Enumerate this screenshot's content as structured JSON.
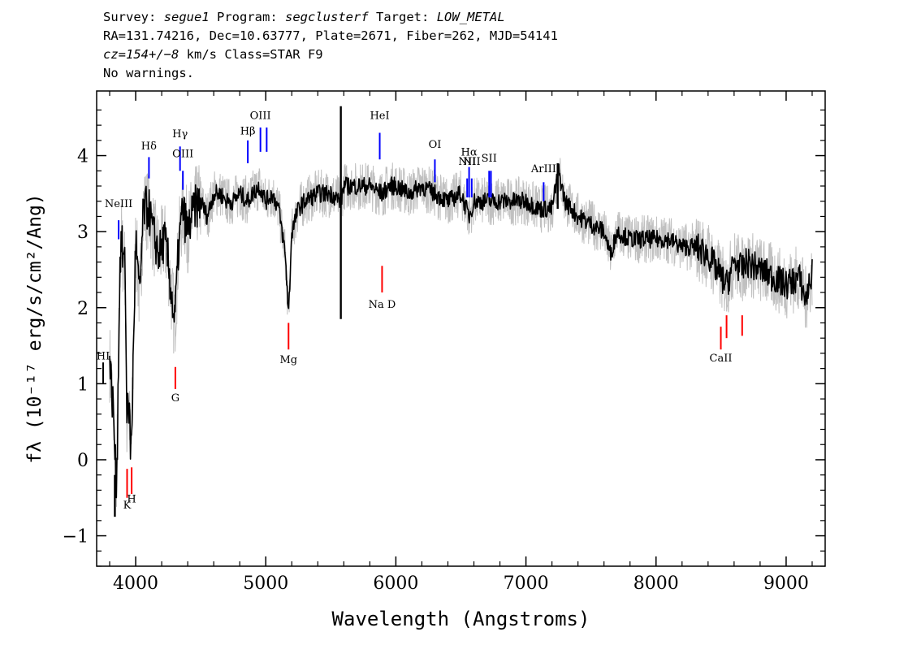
{
  "header": {
    "survey_label": "Survey:",
    "survey_value": "segue1",
    "program_label": "Program:",
    "program_value": "segclusterf",
    "target_label": "Target:",
    "target_value": "LOW_METAL",
    "line2": "RA=131.74216, Dec=10.63777, Plate=2671, Fiber=262, MJD=54141",
    "cz_label": "cz=",
    "cz_value": "154+/−8",
    "cz_unit": " km/s Class=STAR F9",
    "line4": "No warnings."
  },
  "colors": {
    "flux": "#000000",
    "error_band": "#c0c0c0",
    "emission_line": "#0000ff",
    "absorption_line": "#ff0000"
  },
  "chart_data": {
    "type": "line",
    "xlabel": "Wavelength (Angstroms)",
    "ylabel": "fλ (10⁻¹⁷ erg/s/cm²/Ang)",
    "xlim": [
      3700,
      9300
    ],
    "ylim": [
      -1.4,
      4.85
    ],
    "x_ticks": [
      4000,
      5000,
      6000,
      7000,
      8000,
      9000
    ],
    "y_ticks": [
      -1,
      0,
      1,
      2,
      3,
      4
    ],
    "grid": false,
    "series": [
      {
        "x": [
          3800,
          3830,
          3850,
          3860,
          3870,
          3880,
          3890,
          3900,
          3920,
          3933,
          3940,
          3960,
          3968,
          3980,
          4000,
          4030,
          4060,
          4101,
          4130,
          4180,
          4220,
          4250,
          4280,
          4300,
          4330,
          4361,
          4400,
          4450,
          4500,
          4550,
          4600,
          4650,
          4700,
          4750,
          4800,
          4861,
          4900,
          4950,
          5000,
          5050,
          5100,
          5150,
          5175,
          5200,
          5250,
          5300,
          5400,
          5500,
          5577,
          5600,
          5700,
          5800,
          5893,
          5950,
          6000,
          6100,
          6200,
          6300,
          6400,
          6500,
          6563,
          6600,
          6700,
          6800,
          6900,
          7000,
          7100,
          7200,
          7250,
          7300,
          7400,
          7500,
          7600,
          7650,
          7700,
          7800,
          7900,
          8000,
          8100,
          8200,
          8300,
          8400,
          8498,
          8542,
          8600,
          8662,
          8700,
          8800,
          8900,
          9000,
          9100,
          9150,
          9200
        ],
        "y": [
          1.3,
          0.6,
          -0.4,
          0.3,
          1.6,
          2.6,
          2.9,
          2.7,
          2.5,
          0.3,
          1.0,
          0.2,
          0.2,
          1.2,
          2.9,
          2.1,
          3.3,
          3.3,
          3.0,
          2.7,
          2.9,
          2.6,
          2.1,
          1.8,
          2.8,
          3.3,
          3.0,
          3.3,
          3.4,
          3.2,
          3.5,
          3.5,
          3.4,
          3.4,
          3.5,
          3.4,
          3.5,
          3.6,
          3.4,
          3.5,
          3.3,
          2.7,
          1.9,
          3.0,
          3.3,
          3.4,
          3.5,
          3.5,
          3.4,
          3.6,
          3.6,
          3.6,
          3.5,
          3.6,
          3.6,
          3.5,
          3.6,
          3.5,
          3.4,
          3.5,
          3.2,
          3.4,
          3.4,
          3.4,
          3.4,
          3.4,
          3.3,
          3.3,
          3.8,
          3.4,
          3.2,
          3.1,
          3.0,
          2.7,
          3.0,
          2.9,
          2.9,
          2.9,
          2.9,
          2.8,
          2.8,
          2.7,
          2.4,
          2.3,
          2.6,
          2.5,
          2.6,
          2.5,
          2.4,
          2.3,
          2.4,
          2.1,
          2.45
        ],
        "spikes": [
          {
            "x": 5577,
            "y_top": 4.65,
            "y_bottom": 1.85
          },
          {
            "x": 7244,
            "y_top": 3.9,
            "y_bottom": 3.3
          },
          {
            "x": 3840,
            "y_top": -0.2,
            "y_bottom": -0.75
          }
        ],
        "error_width": 0.28
      }
    ],
    "line_markers": [
      {
        "name": "NeIII",
        "x": 3869,
        "y_label": 3.32,
        "bar": [
          2.9,
          3.15
        ],
        "kind": "emission"
      },
      {
        "name": "Hδ",
        "x": 4102,
        "y_label": 4.08,
        "bar": [
          3.7,
          3.98
        ],
        "kind": "emission"
      },
      {
        "name": "Hγ",
        "x": 4341,
        "y_label": 4.24,
        "bar": [
          3.8,
          4.12
        ],
        "kind": "emission"
      },
      {
        "name": "OIII",
        "x": 4363,
        "y_label": 3.98,
        "bar": [
          3.55,
          3.8
        ],
        "kind": "emission"
      },
      {
        "name": "Hβ",
        "x": 4862,
        "y_label": 4.28,
        "bar": [
          3.9,
          4.2
        ],
        "kind": "emission"
      },
      {
        "name": "OIII",
        "x": 4959,
        "y_label": 4.48,
        "bar": [
          4.05,
          4.37
        ],
        "kind": "emission"
      },
      {
        "name": "",
        "x": 5007,
        "y_label": 4.48,
        "bar": [
          4.05,
          4.37
        ],
        "kind": "emission"
      },
      {
        "name": "HeI",
        "x": 5876,
        "y_label": 4.48,
        "bar": [
          3.95,
          4.3
        ],
        "kind": "emission"
      },
      {
        "name": "OI",
        "x": 6300,
        "y_label": 4.1,
        "bar": [
          3.65,
          3.95
        ],
        "kind": "emission"
      },
      {
        "name": "NII",
        "x": 6548,
        "y_label": 3.88,
        "bar": [
          3.45,
          3.7
        ],
        "kind": "emission"
      },
      {
        "name": "Hα",
        "x": 6563,
        "y_label": 4.0,
        "bar": [
          3.45,
          3.85
        ],
        "kind": "emission"
      },
      {
        "name": "NII",
        "x": 6583,
        "y_label": 3.88,
        "bar": [
          3.45,
          3.7
        ],
        "kind": "emission"
      },
      {
        "name": "SII",
        "x": 6717,
        "y_label": 3.92,
        "bar": [
          3.45,
          3.8
        ],
        "kind": "emission"
      },
      {
        "name": "",
        "x": 6731,
        "y_label": 3.92,
        "bar": [
          3.45,
          3.8
        ],
        "kind": "emission"
      },
      {
        "name": "ArIII",
        "x": 7136,
        "y_label": 3.78,
        "bar": [
          3.4,
          3.65
        ],
        "kind": "emission"
      },
      {
        "name": "HI",
        "x": 3750,
        "y_label": 1.32,
        "bar": [
          1.0,
          1.28
        ],
        "kind": "absorption_dark"
      },
      {
        "name": "K",
        "x": 3934,
        "y_label": -0.64,
        "bar": [
          -0.5,
          -0.12
        ],
        "kind": "absorption"
      },
      {
        "name": "H",
        "x": 3969,
        "y_label": -0.56,
        "bar": [
          -0.45,
          -0.1
        ],
        "kind": "absorption"
      },
      {
        "name": "G",
        "x": 4305,
        "y_label": 0.77,
        "bar": [
          0.93,
          1.22
        ],
        "kind": "absorption"
      },
      {
        "name": "Mg",
        "x": 5175,
        "y_label": 1.27,
        "bar": [
          1.45,
          1.8
        ],
        "kind": "absorption"
      },
      {
        "name": "Na D",
        "x": 5894,
        "y_label": 2.0,
        "bar": [
          2.2,
          2.55
        ],
        "kind": "absorption"
      },
      {
        "name": "CaII",
        "x": 8498,
        "y_label": 1.29,
        "bar": [
          1.45,
          1.75
        ],
        "kind": "absorption"
      },
      {
        "name": "",
        "x": 8542,
        "y_label": 1.29,
        "bar": [
          1.6,
          1.9
        ],
        "kind": "absorption"
      },
      {
        "name": "",
        "x": 8662,
        "y_label": 1.29,
        "bar": [
          1.63,
          1.9
        ],
        "kind": "absorption"
      }
    ]
  }
}
